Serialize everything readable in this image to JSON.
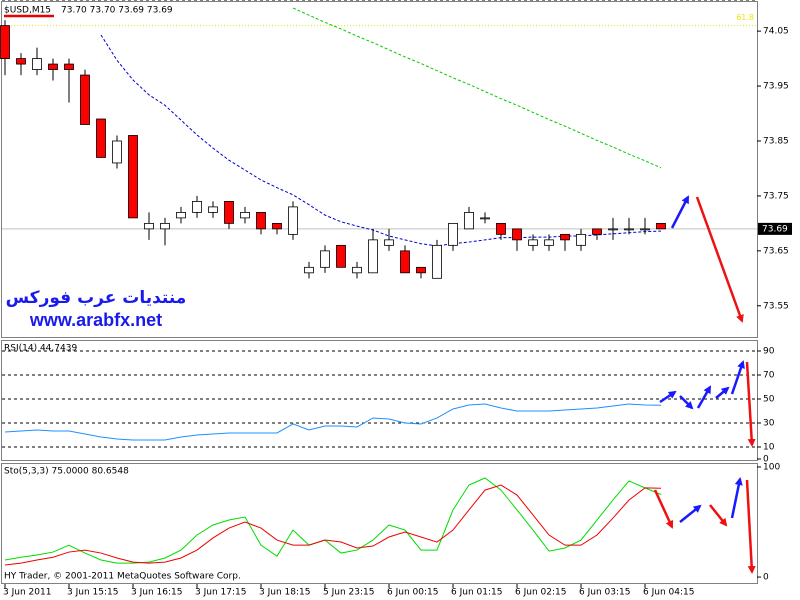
{
  "chart_data": [
    {
      "type": "candlestick",
      "symbol": "$USD,M15",
      "header_values": "73.70 73.70 73.69 73.69",
      "annotations": [
        "منتديات عرب فوركس",
        "www.arabfx.net"
      ],
      "categories": [
        "3 Jun 2011",
        null,
        null,
        null,
        "3 Jun 15:15",
        null,
        null,
        null,
        "3 Jun 16:15",
        null,
        null,
        null,
        "3 Jun 17:15",
        null,
        null,
        null,
        "3 Jun 18:15",
        null,
        null,
        null,
        "5 Jun 23:15",
        null,
        null,
        null,
        "6 Jun 00:15",
        null,
        null,
        null,
        "6 Jun 01:15",
        null,
        null,
        null,
        "6 Jun 02:15",
        null,
        null,
        null,
        "6 Jun 03:15",
        null,
        null,
        null,
        "6 Jun 04:15",
        null
      ],
      "open": [
        74.06,
        74.0,
        73.98,
        73.99,
        73.99,
        73.97,
        73.89,
        73.81,
        73.86,
        73.69,
        73.69,
        73.71,
        73.72,
        73.72,
        73.74,
        73.71,
        73.72,
        73.7,
        73.68,
        73.61,
        73.62,
        73.66,
        73.61,
        73.61,
        73.66,
        73.65,
        73.62,
        73.6,
        73.66,
        73.69,
        73.71,
        73.7,
        73.69,
        73.66,
        73.66,
        73.68,
        73.66,
        73.69,
        73.69,
        73.69,
        73.69,
        73.7
      ],
      "high": [
        74.07,
        74.01,
        74.02,
        74.0,
        74.0,
        73.98,
        73.89,
        73.86,
        73.86,
        73.72,
        73.71,
        73.73,
        73.75,
        73.74,
        73.74,
        73.73,
        73.72,
        73.7,
        73.74,
        73.63,
        73.66,
        73.66,
        73.63,
        73.69,
        73.69,
        73.66,
        73.62,
        73.67,
        73.7,
        73.73,
        73.72,
        73.7,
        73.69,
        73.68,
        73.68,
        73.68,
        73.69,
        73.69,
        73.71,
        73.71,
        73.71,
        73.7
      ],
      "low": [
        73.97,
        73.97,
        73.97,
        73.96,
        73.92,
        73.88,
        73.82,
        73.8,
        73.71,
        73.67,
        73.66,
        73.7,
        73.71,
        73.71,
        73.69,
        73.7,
        73.68,
        73.68,
        73.67,
        73.6,
        73.61,
        73.62,
        73.6,
        73.61,
        73.65,
        73.61,
        73.6,
        73.6,
        73.65,
        73.69,
        73.7,
        73.67,
        73.65,
        73.65,
        73.65,
        73.65,
        73.65,
        73.67,
        73.67,
        73.68,
        73.68,
        73.69
      ],
      "close": [
        74.0,
        73.99,
        74.0,
        73.98,
        73.98,
        73.88,
        73.82,
        73.85,
        73.71,
        73.7,
        73.7,
        73.72,
        73.74,
        73.73,
        73.7,
        73.72,
        73.69,
        73.69,
        73.73,
        73.62,
        73.65,
        73.62,
        73.62,
        73.67,
        73.67,
        73.61,
        73.61,
        73.66,
        73.7,
        73.72,
        73.71,
        73.68,
        73.67,
        73.67,
        73.67,
        73.67,
        73.68,
        73.68,
        73.69,
        73.69,
        73.69,
        73.69
      ],
      "bull_color": "#ffffff",
      "bear_color": "#ff0000",
      "series": [
        {
          "color": "#0000cc",
          "values": [
            null,
            null,
            null,
            null,
            null,
            null,
            74.043,
            73.997,
            73.961,
            73.934,
            73.915,
            73.888,
            73.861,
            73.837,
            73.815,
            73.797,
            73.779,
            73.765,
            73.752,
            73.734,
            73.715,
            73.703,
            73.695,
            73.688,
            73.677,
            73.67,
            73.663,
            73.659,
            73.663,
            73.666,
            73.67,
            73.674,
            73.674,
            73.675,
            73.675,
            73.677,
            73.677,
            73.679,
            73.681,
            73.683,
            73.685,
            73.686
          ]
        },
        {
          "color": "#00cc00",
          "values": [
            null,
            null,
            null,
            null,
            null,
            null,
            null,
            null,
            null,
            null,
            null,
            null,
            null,
            null,
            null,
            null,
            null,
            null,
            74.092,
            74.079,
            74.066,
            74.054,
            74.041,
            74.029,
            74.016,
            74.003,
            73.991,
            73.978,
            73.965,
            73.953,
            73.94,
            73.927,
            73.915,
            73.902,
            73.889,
            73.877,
            73.864,
            73.851,
            73.839,
            73.826,
            73.814,
            73.801
          ]
        }
      ],
      "levels": [
        {
          "value": 74.06,
          "label": "61.8",
          "color": "#e8e800"
        }
      ],
      "last_price": 73.69,
      "ylim": [
        73.495,
        74.103
      ],
      "yticks": [
        74.05,
        73.95,
        73.85,
        73.75,
        73.65,
        73.55
      ]
    },
    {
      "type": "line",
      "title": "RSI(14) 44.7439",
      "series": [
        {
          "color": "#1e90ff",
          "values": [
            22.5,
            23.3,
            24.2,
            23.3,
            23.3,
            20.8,
            18.3,
            16.7,
            15.8,
            15.8,
            15.8,
            18.3,
            20,
            20.8,
            21.7,
            21.7,
            21.7,
            21.7,
            29.2,
            24.2,
            27.5,
            27.5,
            26.7,
            34.2,
            33.3,
            30,
            29.2,
            34.2,
            41.7,
            45,
            45.8,
            42.5,
            40,
            40,
            40,
            40.8,
            41.7,
            42.5,
            44.2,
            45.8,
            45,
            44.7439
          ]
        }
      ],
      "levels": [
        10,
        30,
        50,
        70,
        90
      ],
      "ylim": [
        0,
        97.5
      ],
      "yticks": [
        0,
        10,
        30,
        50,
        70,
        90
      ]
    },
    {
      "type": "line",
      "title": "Sto(5,3,3) 75.0000 80.6548",
      "footer": "HY Trader, © 2001-2011 MetaQuotes Software Corp.",
      "series": [
        {
          "color": "#00dd00",
          "values": [
            15.5,
            18,
            20,
            22.7,
            29,
            21.8,
            15.5,
            12.7,
            12.7,
            13.6,
            17.3,
            24.5,
            38.2,
            47.3,
            51.8,
            54.5,
            29,
            19,
            42.7,
            29,
            33.6,
            21.8,
            24.5,
            33.6,
            47.3,
            42.7,
            24.5,
            24.5,
            61,
            83.6,
            90,
            79,
            61,
            42.7,
            23.6,
            26.4,
            33.6,
            51.8,
            70,
            87.3,
            81,
            75
          ]
        },
        {
          "color": "#ee0000",
          "values": [
            10.9,
            12.7,
            15.5,
            18,
            22.7,
            24.5,
            21.8,
            17.3,
            13.6,
            12.7,
            13.6,
            17.3,
            24.5,
            35.5,
            44.5,
            50,
            44.5,
            33.6,
            29,
            29,
            33.6,
            31.8,
            26.4,
            28.2,
            36.4,
            40.9,
            36.4,
            31.8,
            42.7,
            61,
            79,
            83.6,
            74.5,
            56.4,
            38.2,
            29,
            29,
            38.2,
            53.6,
            70,
            81,
            80.6548
          ]
        }
      ],
      "ylim": [
        -4.5,
        102.7
      ],
      "yticks": [
        0,
        100
      ]
    }
  ]
}
